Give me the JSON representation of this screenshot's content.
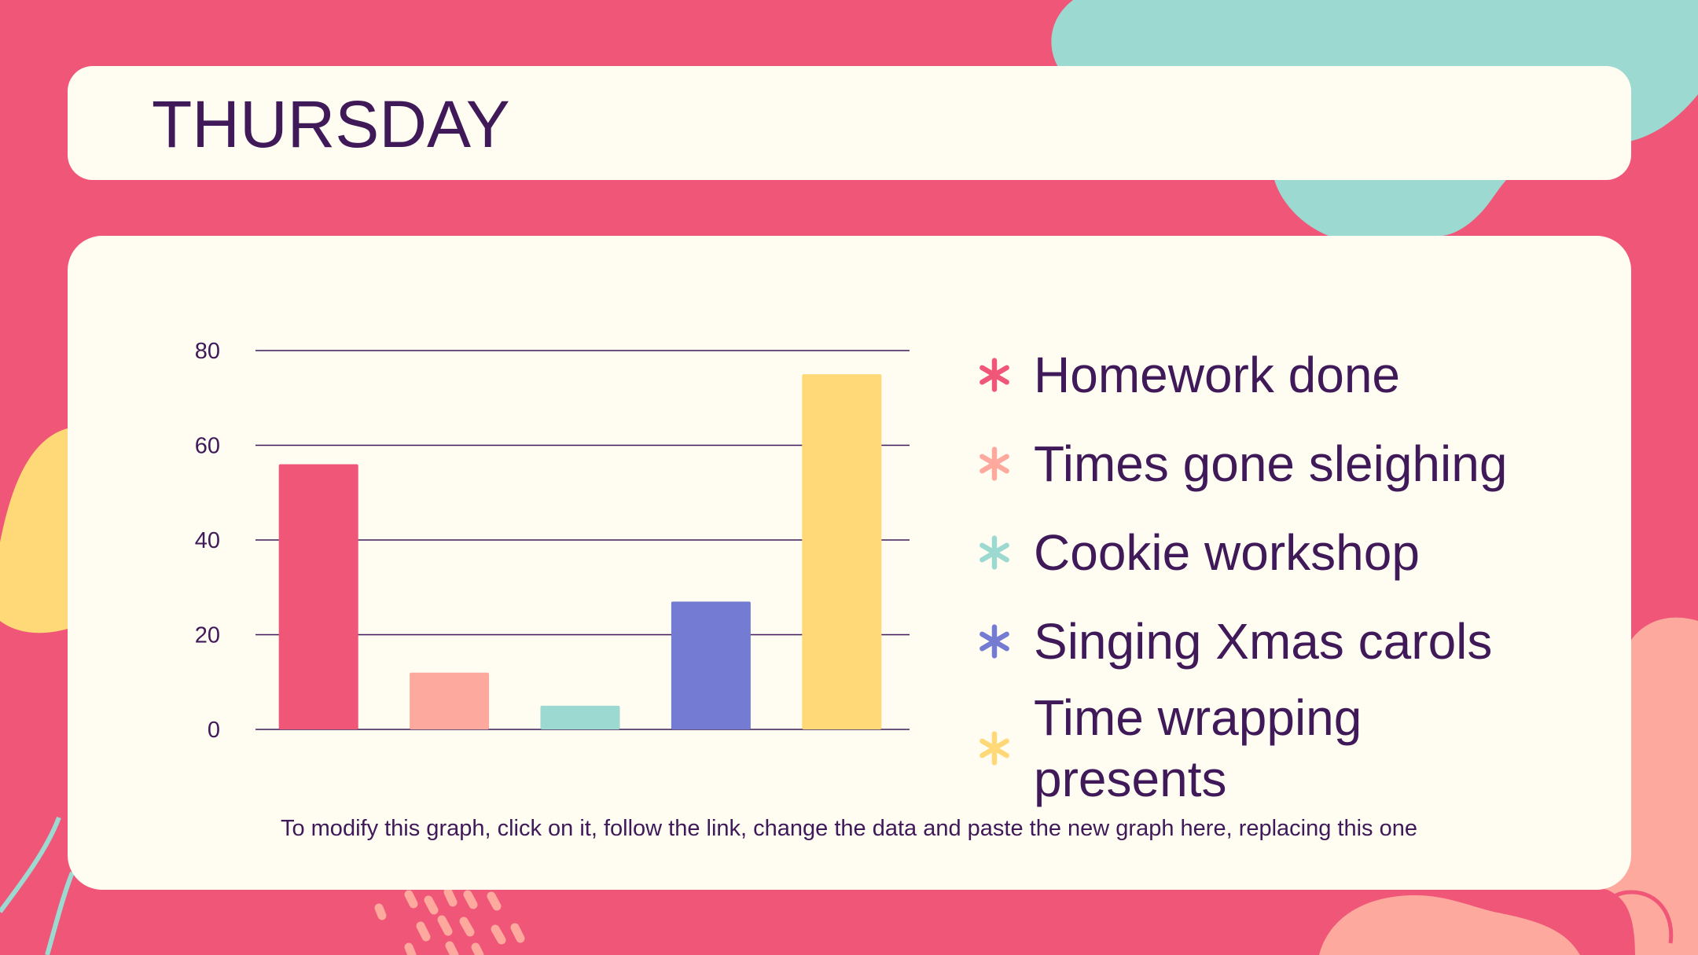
{
  "slide": {
    "title": "THURSDAY",
    "note": "To modify this graph, click on it, follow the link, change the data and paste the new graph here, replacing this one"
  },
  "colors": {
    "background": "#ef5677",
    "card": "#fffcf2",
    "text": "#3f1958",
    "teal": "#9bd9d1",
    "yellow": "#ffd978",
    "peach": "#fda99e"
  },
  "chart_data": {
    "type": "bar",
    "title": "",
    "xlabel": "",
    "ylabel": "",
    "ylim": [
      0,
      80
    ],
    "yticks": [
      0,
      20,
      40,
      60,
      80
    ],
    "grid": true,
    "legend_position": "right",
    "categories": [
      "Homework done",
      "Times gone sleighing",
      "Cookie workshop",
      "Singing Xmas carols",
      "Time wrapping presents"
    ],
    "values": [
      56,
      12,
      5,
      27,
      75
    ],
    "colors": [
      "#ef5677",
      "#fda99e",
      "#9bd9d1",
      "#737bd2",
      "#ffd978"
    ],
    "legend_icon": "asterisk-icon"
  }
}
